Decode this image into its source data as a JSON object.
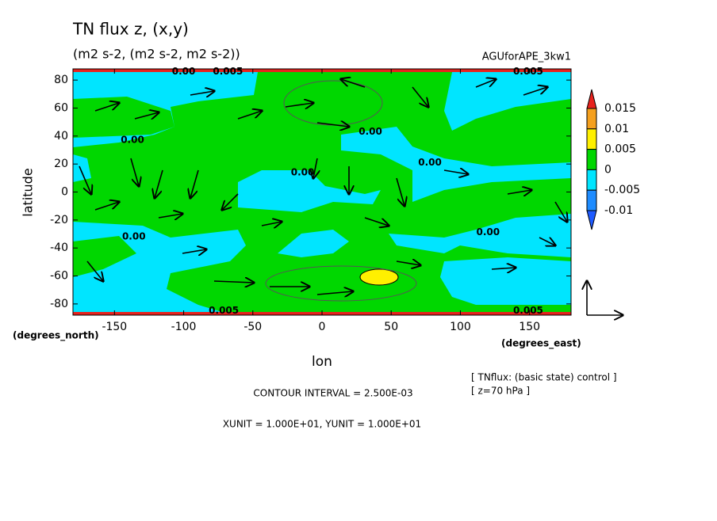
{
  "chart_data": {
    "type": "vector-contour",
    "title": "TN flux z, (x,y)",
    "subtitle": "(m2 s-2, (m2 s-2, m2 s-2))",
    "dataset": "AGUforAPE_3kw1",
    "xlabel": "lon",
    "ylabel": "latitude",
    "xunit_label": "(degrees_east)",
    "yunit_label": "(degrees_north)",
    "xlim": [
      -180,
      180
    ],
    "ylim": [
      -88,
      88
    ],
    "xticks": [
      -150,
      -100,
      -50,
      0,
      50,
      100,
      150
    ],
    "yticks": [
      -80,
      -60,
      -40,
      -20,
      0,
      20,
      40,
      60,
      80
    ],
    "colorbar": {
      "levels": [
        0.015,
        0.01,
        0.005,
        0,
        -0.005,
        -0.01
      ],
      "colors": [
        "#e8231e",
        "#f5a01e",
        "#fff000",
        "#00d700",
        "#00e5ff",
        "#1e8cff",
        "#1e5aff"
      ]
    },
    "contour_labels": [
      {
        "text": "0.00",
        "lon": -100,
        "lat": 86
      },
      {
        "text": "0.005",
        "lon": -68,
        "lat": 86
      },
      {
        "text": "0.005",
        "lon": 149,
        "lat": 86
      },
      {
        "text": "0.00",
        "lon": -137,
        "lat": 37
      },
      {
        "text": "0.00",
        "lon": -14,
        "lat": 14
      },
      {
        "text": "0.00",
        "lon": 35,
        "lat": 43
      },
      {
        "text": "0.00",
        "lon": 78,
        "lat": 21
      },
      {
        "text": "0.00",
        "lon": 120,
        "lat": -29
      },
      {
        "text": "0.00",
        "lon": -136,
        "lat": -32
      },
      {
        "text": "0.005",
        "lon": -71,
        "lat": -85
      },
      {
        "text": "0.005",
        "lon": 149,
        "lat": -85
      }
    ],
    "contour_interval": "CONTOUR INTERVAL = 2.500E-03",
    "units_note": "XUNIT = 1.000E+01, YUNIT = 1.000E+01",
    "notes": [
      "[ TNflux: (basic state) control ]",
      "[ z=70 hPa ]"
    ]
  }
}
